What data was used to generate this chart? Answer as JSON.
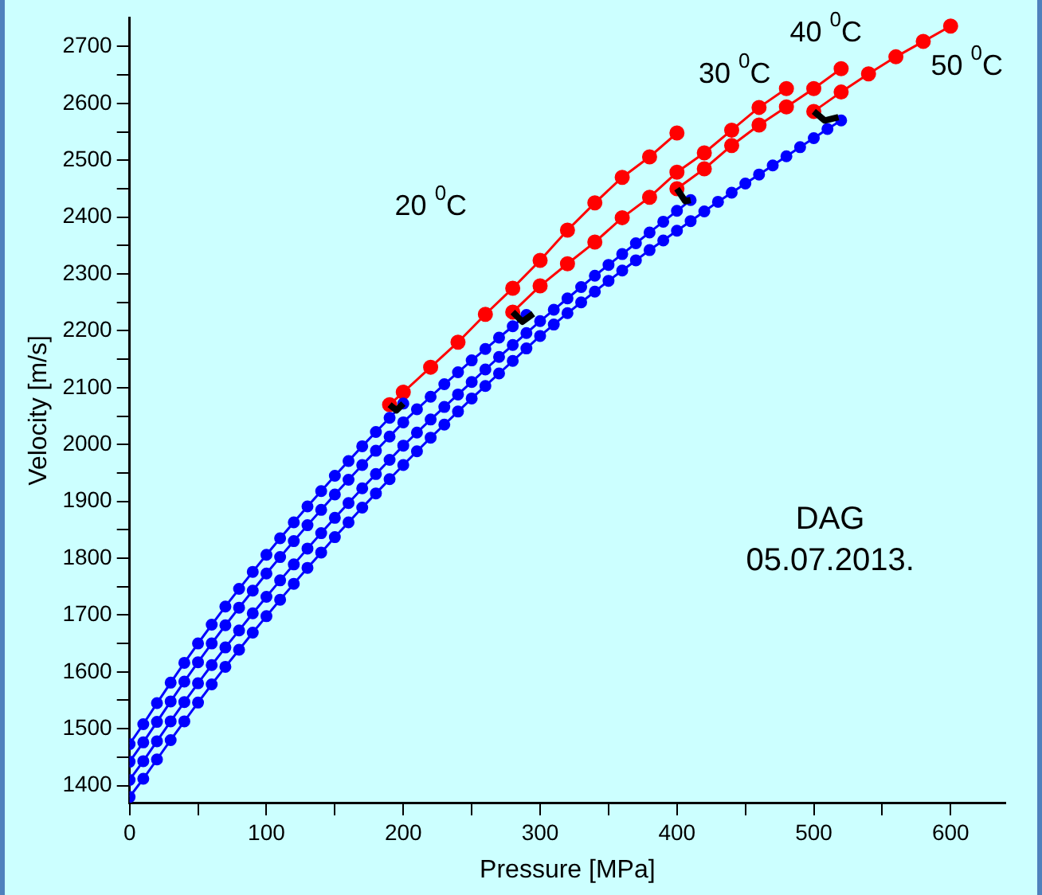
{
  "chart_data": {
    "type": "line",
    "xlabel": "Pressure [MPa]",
    "ylabel": "Velocity [m/s]",
    "xlim": [
      0,
      640
    ],
    "ylim": [
      1370,
      2750
    ],
    "xticks": [
      0,
      {
        "value": 50,
        "label": null
      },
      100,
      {
        "value": 150,
        "label": null
      },
      200,
      {
        "value": 250,
        "label": null
      },
      300,
      {
        "value": 350,
        "label": null
      },
      400,
      {
        "value": 450,
        "label": null
      },
      500,
      {
        "value": 550,
        "label": null
      },
      600
    ],
    "yticks": [
      1400,
      {
        "value": 1450,
        "label": null
      },
      1500,
      {
        "value": 1550,
        "label": null
      },
      1600,
      {
        "value": 1650,
        "label": null
      },
      1700,
      {
        "value": 1750,
        "label": null
      },
      1800,
      {
        "value": 1850,
        "label": null
      },
      1900,
      {
        "value": 1950,
        "label": null
      },
      2000,
      {
        "value": 2050,
        "label": null
      },
      2100,
      {
        "value": 2150,
        "label": null
      },
      2200,
      {
        "value": 2250,
        "label": null
      },
      2300,
      {
        "value": 2350,
        "label": null
      },
      2400,
      {
        "value": 2450,
        "label": null
      },
      2500,
      {
        "value": 2550,
        "label": null
      },
      2600,
      {
        "value": 2650,
        "label": null
      },
      2700
    ],
    "grid": false,
    "legend": false,
    "marker": "circle",
    "series": [
      {
        "color": "#0000ff",
        "x": [
          0,
          10,
          20,
          30,
          40,
          50,
          60,
          70,
          80,
          90,
          100,
          110,
          120,
          130,
          140,
          150,
          160,
          170,
          180,
          190,
          200
        ],
        "values": [
          1473,
          1508,
          1545,
          1581,
          1616,
          1650,
          1683,
          1715,
          1746,
          1776,
          1806,
          1835,
          1863,
          1891,
          1918,
          1945,
          1971,
          1997,
          2022,
          2047,
          2072
        ]
      },
      {
        "color": "#0000ff",
        "x": [
          0,
          10,
          20,
          30,
          40,
          50,
          60,
          70,
          80,
          90,
          100,
          110,
          120,
          130,
          140,
          150,
          160,
          170,
          180,
          190,
          200,
          210,
          220,
          230,
          240,
          250,
          260,
          270,
          280,
          290
        ],
        "values": [
          1442,
          1476,
          1512,
          1548,
          1583,
          1617,
          1650,
          1682,
          1713,
          1743,
          1773,
          1802,
          1830,
          1858,
          1885,
          1912,
          1938,
          1964,
          1989,
          2014,
          2039,
          2062,
          2084,
          2106,
          2127,
          2148,
          2168,
          2188,
          2208,
          2228
        ]
      },
      {
        "color": "#0000ff",
        "x": [
          0,
          10,
          20,
          30,
          40,
          50,
          60,
          70,
          80,
          90,
          100,
          110,
          120,
          130,
          140,
          150,
          160,
          170,
          180,
          190,
          200,
          210,
          220,
          230,
          240,
          250,
          260,
          270,
          280,
          290,
          300,
          310,
          320,
          330,
          340,
          350,
          360,
          370,
          380,
          390,
          400,
          410
        ],
        "values": [
          1410,
          1443,
          1478,
          1513,
          1547,
          1580,
          1612,
          1643,
          1673,
          1703,
          1732,
          1761,
          1789,
          1817,
          1844,
          1871,
          1897,
          1923,
          1948,
          1973,
          1998,
          2021,
          2044,
          2066,
          2088,
          2110,
          2132,
          2154,
          2175,
          2196,
          2217,
          2237,
          2257,
          2277,
          2297,
          2316,
          2335,
          2354,
          2373,
          2392,
          2411,
          2430
        ]
      },
      {
        "color": "#0000ff",
        "x": [
          0,
          10,
          20,
          30,
          40,
          50,
          60,
          70,
          80,
          90,
          100,
          110,
          120,
          130,
          140,
          150,
          160,
          170,
          180,
          190,
          200,
          210,
          220,
          230,
          240,
          250,
          260,
          270,
          280,
          290,
          300,
          310,
          320,
          330,
          340,
          350,
          360,
          370,
          380,
          390,
          400,
          410,
          420,
          430,
          440,
          450,
          460,
          470,
          480,
          490,
          500,
          510,
          520
        ],
        "values": [
          1380,
          1412,
          1446,
          1480,
          1513,
          1546,
          1578,
          1609,
          1639,
          1669,
          1698,
          1727,
          1755,
          1783,
          1810,
          1837,
          1863,
          1889,
          1914,
          1939,
          1964,
          1988,
          2012,
          2035,
          2058,
          2081,
          2103,
          2125,
          2147,
          2169,
          2191,
          2211,
          2231,
          2250,
          2269,
          2288,
          2306,
          2324,
          2342,
          2359,
          2376,
          2393,
          2410,
          2427,
          2443,
          2459,
          2475,
          2491,
          2507,
          2523,
          2539,
          2555,
          2570
        ]
      },
      {
        "color": "#ff0000",
        "x": [
          190,
          200,
          220,
          240,
          260,
          280,
          300,
          320,
          340,
          360,
          380,
          400
        ],
        "values": [
          2070,
          2092,
          2136,
          2180,
          2229,
          2275,
          2324,
          2377,
          2425,
          2470,
          2506,
          2548
        ]
      },
      {
        "color": "#ff0000",
        "x": [
          280,
          300,
          320,
          340,
          360,
          380,
          400,
          420,
          440,
          460,
          480
        ],
        "values": [
          2233,
          2279,
          2318,
          2356,
          2399,
          2435,
          2479,
          2513,
          2553,
          2593,
          2626
        ]
      },
      {
        "color": "#ff0000",
        "x": [
          400,
          420,
          440,
          460,
          480,
          500,
          520
        ],
        "values": [
          2450,
          2485,
          2526,
          2562,
          2594,
          2626,
          2661
        ]
      },
      {
        "color": "#ff0000",
        "x": [
          500,
          520,
          540,
          560,
          580,
          600
        ],
        "values": [
          2586,
          2620,
          2652,
          2682,
          2709,
          2736
        ]
      },
      {
        "color": "#000000",
        "marker": "none",
        "x": [
          190,
          195,
          200
        ],
        "values": [
          2070,
          2060,
          2072
        ]
      },
      {
        "color": "#000000",
        "marker": "none",
        "x": [
          280,
          287,
          295
        ],
        "values": [
          2233,
          2216,
          2230
        ]
      },
      {
        "color": "#000000",
        "marker": "none",
        "x": [
          400,
          406,
          410
        ],
        "values": [
          2450,
          2428,
          2430
        ]
      },
      {
        "color": "#000000",
        "marker": "none",
        "x": [
          500,
          508,
          518
        ],
        "values": [
          2586,
          2570,
          2576
        ]
      }
    ],
    "annotations": [
      "20 $^{0}$C",
      "30 $^{0}$C",
      "40 $^{0}$C",
      "50 $^{0}$C",
      "DAG",
      "05.07.2013."
    ]
  }
}
